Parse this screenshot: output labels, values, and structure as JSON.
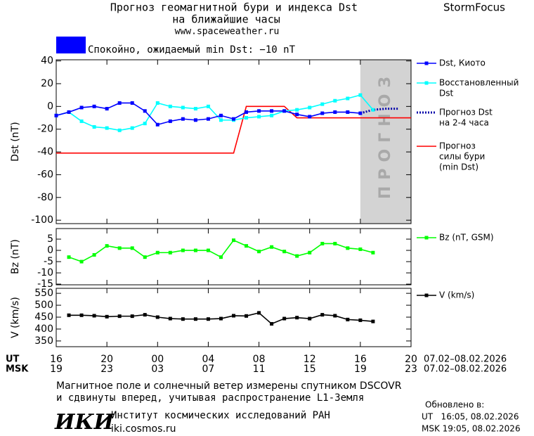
{
  "header": {
    "title_lines": [
      "Прогноз геомагнитной бури и индекса Dst",
      "на ближайшие часы"
    ],
    "url": "www.spaceweather.ru",
    "brand": "StormFocus",
    "status": {
      "color": "#0000ff",
      "text": "Спокойно, ожидаемый min Dst: −10 nT"
    }
  },
  "chart_data": [
    {
      "type": "line",
      "y_label": "Dst (nT)",
      "xlim": [
        0,
        28
      ],
      "ylim": [
        -103,
        41
      ],
      "yticks": [
        40,
        20,
        0,
        -20,
        -40,
        -60,
        -80,
        -100
      ],
      "forecast_region": {
        "x": [
          24,
          28
        ],
        "label": "ПРОГНОЗ",
        "color": "#d3d3d3"
      },
      "series": [
        {
          "name": [
            "Dst, Киото"
          ],
          "color": "#0000ff",
          "marker": "square",
          "style": "solid",
          "x": [
            0,
            1,
            2,
            3,
            4,
            5,
            6,
            7,
            8,
            9,
            10,
            11,
            12,
            13,
            14,
            15,
            16,
            17,
            18,
            19,
            20,
            21,
            22,
            23,
            24
          ],
          "values": [
            -8,
            -5,
            -1,
            0,
            -2,
            3,
            3,
            -4,
            -16,
            -13,
            -11,
            -12,
            -11,
            -8,
            -11,
            -5,
            -4,
            -4,
            -4,
            -7,
            -9,
            -6,
            -5,
            -5,
            -6
          ]
        },
        {
          "name": [
            "Восстановленный",
            "Dst"
          ],
          "color": "#00ffff",
          "marker": "square",
          "style": "solid",
          "x": [
            0,
            1,
            2,
            3,
            4,
            5,
            6,
            7,
            8,
            9,
            10,
            11,
            12,
            13,
            14,
            15,
            16,
            17,
            18,
            19,
            20,
            21,
            22,
            23,
            24,
            25
          ],
          "values": [
            -8,
            -5,
            -13,
            -18,
            -19,
            -21,
            -19,
            -15,
            3,
            0,
            -1,
            -2,
            0,
            -12,
            -12,
            -10,
            -9,
            -8,
            -4,
            -3,
            -1,
            2,
            5,
            7,
            10,
            -3
          ]
        },
        {
          "name": [
            "Прогноз Dst",
            "на 2-4 часа"
          ],
          "color": "#0000aa",
          "marker": "none",
          "style": "dotted",
          "x": [
            24,
            25,
            26,
            27
          ],
          "values": [
            -6,
            -3,
            -2,
            -2
          ]
        },
        {
          "name": [
            "Прогноз",
            "силы бури",
            "(min Dst)"
          ],
          "color": "#ff0000",
          "marker": "none",
          "style": "solid",
          "x": [
            0,
            14,
            15,
            18,
            19,
            28
          ],
          "values": [
            -41,
            -41,
            0,
            0,
            -10,
            -10
          ]
        }
      ]
    },
    {
      "type": "line",
      "y_label": "Bz (nT)",
      "xlim": [
        0,
        28
      ],
      "ylim": [
        -15.3,
        9.7
      ],
      "yticks": [
        5,
        0,
        -5,
        -10,
        -15
      ],
      "series": [
        {
          "name": [
            "Bz (nT, GSM)"
          ],
          "color": "#00ff00",
          "marker": "square",
          "style": "solid",
          "x": [
            1,
            2,
            3,
            4,
            5,
            6,
            7,
            8,
            9,
            10,
            11,
            12,
            13,
            14,
            15,
            16,
            17,
            18,
            19,
            20,
            21,
            22,
            23,
            24,
            25
          ],
          "values": [
            -3,
            -5,
            -2,
            2,
            1,
            1,
            -3,
            -1,
            -1,
            0,
            0,
            0,
            -3,
            4.5,
            2,
            -0.5,
            1.5,
            -0.5,
            -2.5,
            -1,
            3,
            3,
            1,
            0.5,
            -1
          ]
        }
      ]
    },
    {
      "type": "line",
      "y_label": "V (km/s)",
      "xlim": [
        0,
        28
      ],
      "ylim": [
        326,
        571
      ],
      "yticks": [
        550,
        500,
        450,
        400,
        350
      ],
      "xticks": [
        {
          "value": 0,
          "label": "16"
        },
        {
          "value": 4,
          "label": "20"
        },
        {
          "value": 8,
          "label": "00"
        },
        {
          "value": 12,
          "label": "04"
        },
        {
          "value": 16,
          "label": "08"
        },
        {
          "value": 20,
          "label": "12"
        },
        {
          "value": 24,
          "label": "16"
        },
        {
          "value": 28,
          "label": "20"
        }
      ],
      "xticks_msk": [
        "19",
        "23",
        "03",
        "07",
        "11",
        "15",
        "19",
        "23"
      ],
      "x_row_labels": [
        "UT",
        "MSK"
      ],
      "date_ranges": [
        "07.02–08.02.2026",
        "07.02–08.02.2026"
      ],
      "series": [
        {
          "name": [
            "V (km/s)"
          ],
          "color": "#000000",
          "marker": "square",
          "style": "solid",
          "x": [
            1,
            2,
            3,
            4,
            5,
            6,
            7,
            8,
            9,
            10,
            11,
            12,
            13,
            14,
            15,
            16,
            17,
            18,
            19,
            20,
            21,
            22,
            23,
            24,
            25
          ],
          "values": [
            458,
            458,
            456,
            452,
            454,
            454,
            460,
            450,
            444,
            442,
            442,
            442,
            444,
            456,
            455,
            468,
            422,
            444,
            448,
            444,
            460,
            456,
            440,
            437,
            432
          ]
        }
      ]
    }
  ],
  "footer": {
    "note_lines": [
      "Магнитное поле и солнечный ветер измерены спутником DSCOVR",
      "и сдвинуты вперед, учитывая распространение L1-Земля"
    ],
    "logo": "ИКИ",
    "institute": "Институт космических исследований РАН",
    "site": "iki.cosmos.ru",
    "updated_label": "Обновлено в:",
    "updated": [
      "UT   16:05, 08.02.2026",
      "MSK 19:05, 08.02.2026"
    ]
  }
}
